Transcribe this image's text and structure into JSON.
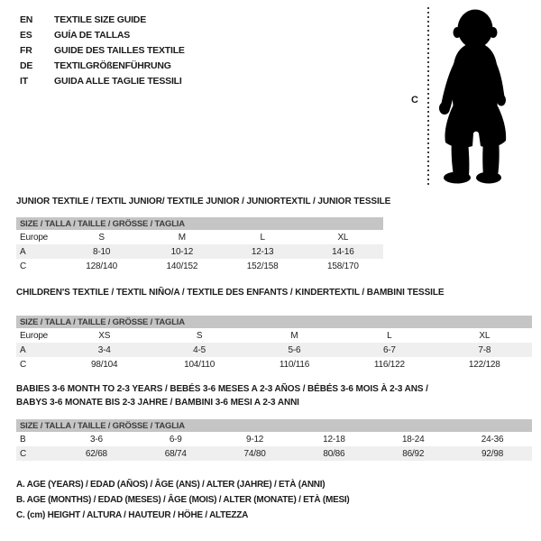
{
  "languages": [
    {
      "code": "EN",
      "title": "TEXTILE SIZE GUIDE"
    },
    {
      "code": "ES",
      "title": "GUÍA DE TALLAS"
    },
    {
      "code": "FR",
      "title": "GUIDE DES TAILLES TEXTILE"
    },
    {
      "code": "DE",
      "title": "TEXTILGRÖßENFÜHRUNG"
    },
    {
      "code": "IT",
      "title": "GUIDA ALLE TAGLIE TESSILI"
    }
  ],
  "figure": {
    "icon": "baby-silhouette",
    "measure_label": "C"
  },
  "tables": [
    {
      "title": "JUNIOR TEXTILE / TEXTIL JUNIOR/ TEXTILE JUNIOR / JUNIORTEXTIL / JUNIOR TESSILE",
      "header": "SIZE / TALLA / TAILLE / GRÖSSE / TAGLIA",
      "rows": [
        {
          "label": "Europe",
          "values": [
            "S",
            "M",
            "L",
            "XL"
          ]
        },
        {
          "label": "A",
          "values": [
            "8-10",
            "10-12",
            "12-13",
            "14-16"
          ]
        },
        {
          "label": "C",
          "values": [
            "128/140",
            "140/152",
            "152/158",
            "158/170"
          ]
        }
      ]
    },
    {
      "title": "CHILDREN'S TEXTILE / TEXTIL NIÑO/A / TEXTILE DES ENFANTS / KINDERTEXTIL / BAMBINI TESSILE",
      "header": "SIZE / TALLA / TAILLE / GRÖSSE / TAGLIA",
      "rows": [
        {
          "label": "Europe",
          "values": [
            "XS",
            "S",
            "M",
            "L",
            "XL"
          ]
        },
        {
          "label": "A",
          "values": [
            "3-4",
            "4-5",
            "5-6",
            "6-7",
            "7-8"
          ]
        },
        {
          "label": "C",
          "values": [
            "98/104",
            "104/110",
            "110/116",
            "116/122",
            "122/128"
          ]
        }
      ]
    },
    {
      "title": "BABIES 3-6 MONTH TO 2-3 YEARS / BEBÉS 3-6 MESES A 2-3 AÑOS / BÉBÉS 3-6 MOIS À 2-3 ANS / BABYS 3-6 MONATE BIS 2-3 JAHRE / BAMBINI 3-6 MESI A 2-3 ANNI",
      "header": "SIZE / TALLA / TAILLE / GRÖSSE / TAGLIA",
      "rows": [
        {
          "label": "B",
          "values": [
            "3-6",
            "6-9",
            "9-12",
            "12-18",
            "18-24",
            "24-36"
          ]
        },
        {
          "label": "C",
          "values": [
            "62/68",
            "68/74",
            "74/80",
            "80/86",
            "86/92",
            "92/98"
          ]
        }
      ]
    }
  ],
  "footnotes": [
    "A. AGE (YEARS) / EDAD (AÑOS) / ÂGE (ANS) / ALTER (JAHRE) / ETÀ (ANNI)",
    "B. AGE (MONTHS) / EDAD (MESES) / ÂGE (MOIS) / ALTER (MONATE) / ETÀ (MESI)",
    "C. (cm) HEIGHT / ALTURA / HAUTEUR / HÖHE / ALTEZZA"
  ],
  "colors": {
    "table_header_bar": "#c5c5c5",
    "alt_row": "#efefef",
    "silhouette": "#000000",
    "text": "#1b1b1b"
  }
}
